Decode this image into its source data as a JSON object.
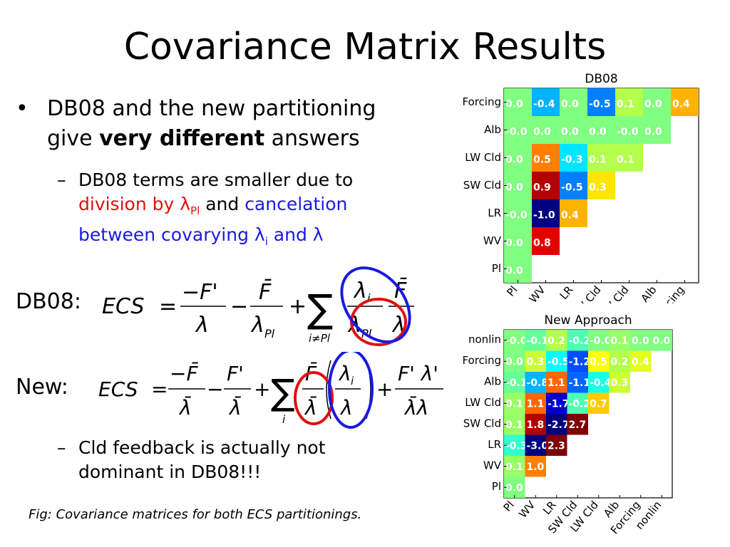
{
  "slide": {
    "title": "Covariance Matrix Results",
    "bullet1": {
      "marker": "•",
      "text_pre": "DB08 and the new partitioning give ",
      "text_bold": "very different",
      "text_post": " answers"
    },
    "sub1": {
      "marker": "–",
      "line1": "DB08 terms are smaller due to",
      "red_text": "division by λ",
      "red_sub": "Pl",
      "and1": " and ",
      "blue_text": "cancelation between covarying λ",
      "blue_sub": "i",
      "blue_end": " and λ"
    },
    "eq_db08_label": "DB08:",
    "eq_new_label": "New:",
    "sub2": {
      "marker": "–",
      "text": "Cld feedback is actually not dominant in DB08!!!"
    },
    "caption": "Fig: Covariance matrices for both ECS partitionings."
  },
  "equations": {
    "lhs": "ECS",
    "equals": "=",
    "db08": {
      "t1_num": "−F'",
      "t1_den": "λ",
      "minus": "−",
      "t2_num": "F̄",
      "t2_den": "λ",
      "t2_den_sub": "Pl",
      "plus": "+",
      "sum": "∑",
      "sum_sub": "i≠Pl",
      "t3_num": "λ",
      "t3_num_sub": "i",
      "t3_den": "λ",
      "t3_den_sub": "Pl",
      "t4_num": "F̄",
      "t4_den": "λ"
    },
    "new": {
      "t1_num": "−F̄",
      "t1_den": "λ̄",
      "minus": "−",
      "t2_num": "F'",
      "t2_den": "λ̄",
      "plus": "+",
      "sum": "∑",
      "sum_sub": "i",
      "t3_num": "F̄",
      "t3_den": "λ̄",
      "t4_num": "λ",
      "t4_num_sub": "i",
      "t4_den": "λ",
      "dot": ".",
      "plus2": "+",
      "t5_num": "F' λ'",
      "t5_den": "λ̄λ"
    }
  },
  "colors": {
    "text": "#000000",
    "red": "#e01010",
    "blue": "#1a1ae0"
  },
  "chart_data": [
    {
      "type": "heatmap",
      "title": "DB08",
      "row_labels": [
        "Forcing",
        "Alb",
        "LW Cld",
        "SW Cld",
        "LR",
        "WV",
        "Pl"
      ],
      "col_labels": [
        "Pl",
        "WV",
        "LR",
        "SW Cld",
        "LW Cld",
        "Alb",
        "Forcing"
      ],
      "values": [
        [
          0.0,
          -0.4,
          0.0,
          -0.5,
          0.1,
          0.0,
          0.4
        ],
        [
          -0.0,
          0.0,
          0.0,
          0.0,
          -0.0,
          0.0
        ],
        [
          0.0,
          0.5,
          -0.3,
          0.1,
          0.1
        ],
        [
          0.0,
          0.9,
          -0.5,
          0.3
        ],
        [
          -0.0,
          -1.0,
          0.4
        ],
        [
          0.0,
          0.8
        ],
        [
          0.0
        ]
      ],
      "labels": [
        [
          "0.0",
          "-0.4",
          "0.0",
          "-0.5",
          "0.1",
          "0.0",
          "0.4"
        ],
        [
          "-0.0",
          "0.0",
          "0.0",
          "0.0",
          "-0.0",
          "0.0"
        ],
        [
          "0.0",
          "0.5",
          "-0.3",
          "0.1",
          "0.1"
        ],
        [
          "0.0",
          "0.9",
          "-0.5",
          "0.3"
        ],
        [
          "-0.0",
          "-1.0",
          "0.4"
        ],
        [
          "0.0",
          "0.8"
        ],
        [
          "0.0"
        ]
      ],
      "vmin": -1.0,
      "vmax": 1.0
    },
    {
      "type": "heatmap",
      "title": "New Approach",
      "row_labels": [
        "nonlin",
        "Forcing",
        "Alb",
        "LW Cld",
        "SW Cld",
        "LR",
        "WV",
        "Pl"
      ],
      "col_labels": [
        "Pl",
        "WV",
        "LR",
        "SW Cld",
        "LW Cld",
        "Alb",
        "Forcing",
        "nonlin"
      ],
      "values": [
        [
          -0.0,
          -0.1,
          0.2,
          -0.2,
          -0.0,
          0.1,
          0.0,
          0.0
        ],
        [
          0.0,
          0.3,
          -0.5,
          -1.2,
          0.5,
          0.2,
          0.4
        ],
        [
          -0.1,
          -0.8,
          1.1,
          -1.1,
          -0.4,
          0.3
        ],
        [
          0.1,
          1.1,
          -1.7,
          -0.2,
          0.7
        ],
        [
          0.1,
          1.8,
          -2.7,
          2.7
        ],
        [
          -0.3,
          -3.0,
          2.3
        ],
        [
          0.1,
          1.0
        ],
        [
          0.0
        ]
      ],
      "labels": [
        [
          "-0.0",
          "-0.1",
          "0.2",
          "-0.2",
          "-0.0",
          "0.1",
          "0.0",
          "0.0"
        ],
        [
          "0.0",
          "0.3",
          "-0.5",
          "-1.2",
          "0.5",
          "0.2",
          "0.4"
        ],
        [
          "-0.1",
          "-0.8",
          "1.1",
          "-1.1",
          "-0.4",
          "0.3"
        ],
        [
          "0.1",
          "1.1",
          "-1.7",
          "-0.2",
          "0.7"
        ],
        [
          "0.1",
          "1.8",
          "-2.7",
          "2.7"
        ],
        [
          "-0.3",
          "-3.0",
          "2.3"
        ],
        [
          "0.1",
          "1.0"
        ],
        [
          "0.0"
        ]
      ],
      "vmin": -2.0,
      "vmax": 2.0
    }
  ]
}
